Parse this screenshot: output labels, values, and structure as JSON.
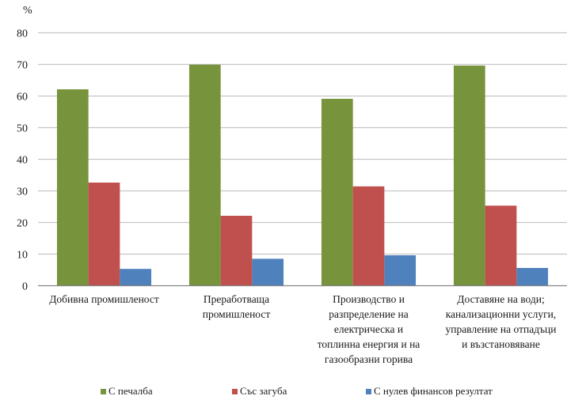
{
  "chart_data": {
    "type": "bar",
    "title": "",
    "ylabel": "%",
    "xlabel": "",
    "ylim": [
      0,
      80
    ],
    "yticks": [
      0,
      10,
      20,
      30,
      40,
      50,
      60,
      70,
      80
    ],
    "grid": true,
    "legend_position": "bottom",
    "categories": [
      "Добивна промишленост",
      "Преработваща промишленост",
      "Производство и разпределение на електрическа и топлинна енергия и на газообразни горива",
      "Доставяне на води; канализационни услуги, управление на отпадъци и възстановяване"
    ],
    "category_lines": [
      [
        "Добивна промишленост"
      ],
      [
        "Преработваща",
        "промишленост"
      ],
      [
        "Производство и",
        "разпределение на",
        "електрическа и",
        "топлинна енергия и на",
        "газообразни горива"
      ],
      [
        "Доставяне на води;",
        "канализационни услуги,",
        "управление на отпадъци",
        "и възстановяване"
      ]
    ],
    "series": [
      {
        "name": "С печалба",
        "color": "#77933C",
        "values": [
          62.0,
          69.8,
          59.0,
          69.5
        ]
      },
      {
        "name": "Със загуба",
        "color": "#C0504D",
        "values": [
          32.5,
          22.0,
          31.3,
          25.2
        ]
      },
      {
        "name": "С нулев финансов резултат",
        "color": "#4F81BD",
        "values": [
          5.2,
          8.4,
          9.5,
          5.5
        ]
      }
    ]
  }
}
